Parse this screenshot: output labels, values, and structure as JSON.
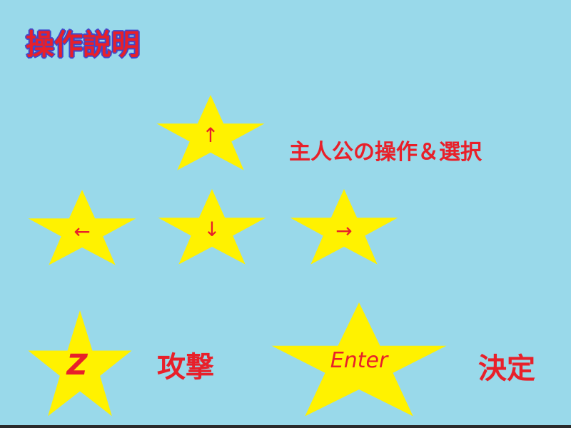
{
  "title": "操作説明",
  "keys": {
    "up": "↑",
    "left": "←",
    "down": "↓",
    "right": "→",
    "z": "Z",
    "enter": "Enter"
  },
  "labels": {
    "move": "主人公の操作＆選択",
    "attack": "攻撃",
    "confirm": "決定"
  },
  "colors": {
    "background": "#99d9ea",
    "star": "#fff200",
    "text": "#e8202a",
    "title_outline": "#3f48cc"
  }
}
